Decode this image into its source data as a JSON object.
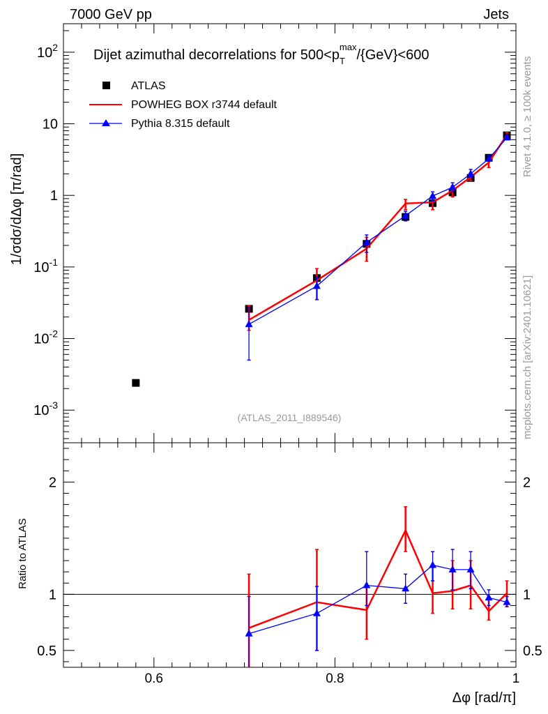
{
  "header": {
    "left": "7000 GeV pp",
    "right": "Jets"
  },
  "side_labels": {
    "rivet": "Rivet 4.1.0, ≥ 100k events",
    "mcplots": "mcplots.cern.ch [arXiv:2401.10621]"
  },
  "chart_data": [
    {
      "type": "scatter",
      "panel": "main",
      "title": "Dijet azimuthal decorrelations for 500<p_T^max/{GeV}<600",
      "title_parts": {
        "pre": "Dijet azimuthal decorrelations for 500<p",
        "sub": "T",
        "sup": "max",
        "post": "/{GeV}<600"
      },
      "ylabel": "1/σdσ/dΔφ [π/rad]",
      "yscale": "log",
      "ylim": [
        0.00035,
        250
      ],
      "xlim": [
        0.5,
        1.0
      ],
      "y_ticks": [
        {
          "v": 0.001,
          "label": "10^-3"
        },
        {
          "v": 0.01,
          "label": "10^-2"
        },
        {
          "v": 0.1,
          "label": "10^-1"
        },
        {
          "v": 1,
          "label": "1"
        },
        {
          "v": 10,
          "label": "10"
        },
        {
          "v": 100,
          "label": "10^2"
        }
      ],
      "watermark": "(ATLAS_2011_I889546)",
      "legend": [
        {
          "label": "ATLAS",
          "marker": "square",
          "color": "#000000"
        },
        {
          "label": "POWHEG BOX r3744 default",
          "marker": "line",
          "color": "#ff0000"
        },
        {
          "label": "Pythia 8.315 default",
          "marker": "triangle",
          "color": "#0000ff"
        }
      ],
      "series": [
        {
          "name": "ATLAS",
          "color": "#000000",
          "x": [
            0.58,
            0.705,
            0.78,
            0.835,
            0.878,
            0.908,
            0.93,
            0.95,
            0.97,
            0.99
          ],
          "y": [
            0.0024,
            0.026,
            0.07,
            0.21,
            0.5,
            0.78,
            1.1,
            1.75,
            3.35,
            6.9
          ]
        },
        {
          "name": "POWHEG BOX r3744 default",
          "color": "#ff0000",
          "x": [
            0.705,
            0.78,
            0.835,
            0.878,
            0.908,
            0.93,
            0.95,
            0.97,
            0.99
          ],
          "y": [
            0.0182,
            0.065,
            0.18,
            0.77,
            0.8,
            1.17,
            1.8,
            2.88,
            7.0
          ],
          "err_lo": [
            0.013,
            0.035,
            0.12,
            0.63,
            0.63,
            0.95,
            1.6,
            2.45,
            6.4
          ],
          "err_hi": [
            0.029,
            0.095,
            0.26,
            0.88,
            0.98,
            1.36,
            2.05,
            3.3,
            7.6
          ]
        },
        {
          "name": "Pythia 8.315 default",
          "color": "#0000ff",
          "x": [
            0.705,
            0.78,
            0.835,
            0.878,
            0.908,
            0.93,
            0.95,
            0.97,
            0.99
          ],
          "y": [
            0.0158,
            0.054,
            0.22,
            0.52,
            0.98,
            1.3,
            2.0,
            3.25,
            6.4
          ],
          "err_lo": [
            0.005,
            0.035,
            0.16,
            0.44,
            0.84,
            1.12,
            1.8,
            3.0,
            6.0
          ],
          "err_hi": [
            0.027,
            0.072,
            0.28,
            0.6,
            1.12,
            1.5,
            2.3,
            3.6,
            6.9
          ]
        }
      ]
    },
    {
      "type": "line",
      "panel": "ratio",
      "ylabel": "Ratio to ATLAS",
      "xlabel": "Δφ [rad/π]",
      "ylim": [
        0.35,
        2.35
      ],
      "xlim": [
        0.5,
        1.0
      ],
      "y_ticks": [
        {
          "v": 0.5,
          "label": "0.5"
        },
        {
          "v": 1,
          "label": "1"
        },
        {
          "v": 2,
          "label": "2"
        }
      ],
      "x_ticks": [
        {
          "v": 0.6,
          "label": "0.6"
        },
        {
          "v": 0.8,
          "label": "0.8"
        },
        {
          "v": 1.0,
          "label": "1"
        }
      ],
      "reference_line": 1,
      "series": [
        {
          "name": "POWHEG BOX r3744 default",
          "color": "#ff0000",
          "x": [
            0.705,
            0.78,
            0.835,
            0.878,
            0.908,
            0.93,
            0.95,
            0.97,
            0.99
          ],
          "y": [
            0.7,
            0.93,
            0.86,
            1.57,
            1.01,
            1.03,
            1.08,
            0.85,
            1.01
          ],
          "err_lo": [
            0.0,
            0.5,
            0.6,
            1.38,
            0.83,
            0.87,
            0.87,
            0.77,
            0.89
          ],
          "err_hi": [
            1.18,
            1.4,
            1.07,
            1.78,
            1.24,
            1.3,
            1.3,
            0.95,
            1.12
          ]
        },
        {
          "name": "Pythia 8.315 default",
          "color": "#0000ff",
          "x": [
            0.705,
            0.78,
            0.835,
            0.878,
            0.908,
            0.93,
            0.95,
            0.97,
            0.99
          ],
          "y": [
            0.65,
            0.83,
            1.08,
            1.05,
            1.26,
            1.22,
            1.22,
            0.97,
            0.93
          ],
          "err_lo": [
            0.3,
            0.5,
            0.9,
            0.92,
            1.12,
            1.04,
            1.05,
            0.9,
            0.89
          ],
          "err_hi": [
            0.98,
            1.07,
            1.38,
            1.18,
            1.38,
            1.4,
            1.38,
            1.04,
            0.98
          ]
        }
      ]
    }
  ]
}
